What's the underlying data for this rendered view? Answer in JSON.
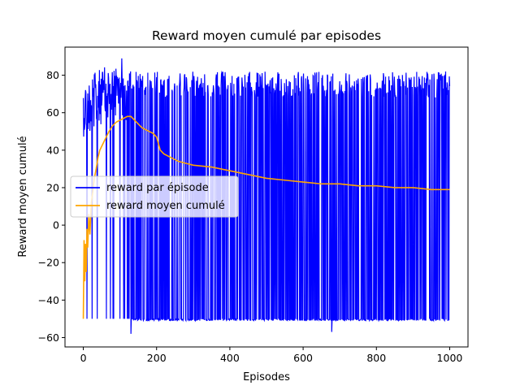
{
  "chart_data": {
    "type": "line",
    "title": "Reward moyen cumulé par episodes",
    "xlabel": "Episodes",
    "ylabel": "Reward moyen cumulé",
    "xlim": [
      -50,
      1050
    ],
    "ylim": [
      -65,
      95
    ],
    "xticks": [
      0,
      200,
      400,
      600,
      800,
      1000
    ],
    "yticks": [
      -60,
      -40,
      -20,
      0,
      20,
      40,
      60,
      80
    ],
    "legend_position": "center-left",
    "grid": false,
    "series": [
      {
        "name": "reward par épisode",
        "color": "#0000ff",
        "pattern": "oscillating",
        "episodes": 1000,
        "high_band": [
          [
            0,
            77
          ],
          [
            50,
            84
          ],
          [
            100,
            87
          ],
          [
            130,
            85
          ],
          [
            200,
            82
          ],
          [
            400,
            82
          ],
          [
            600,
            82
          ],
          [
            800,
            82
          ],
          [
            1000,
            82
          ]
        ],
        "low_value": -50,
        "min_value": -58,
        "max_value": 89
      },
      {
        "name": "reward moyen cumulé",
        "color": "#ffa500",
        "x": [
          0,
          2,
          4,
          6,
          8,
          10,
          12,
          15,
          18,
          22,
          26,
          30,
          35,
          40,
          45,
          50,
          60,
          70,
          80,
          90,
          100,
          110,
          120,
          130,
          140,
          150,
          160,
          170,
          180,
          190,
          200,
          210,
          220,
          240,
          260,
          280,
          300,
          350,
          400,
          450,
          500,
          550,
          600,
          650,
          700,
          750,
          800,
          850,
          900,
          950,
          1000
        ],
        "y": [
          -50,
          -8,
          -30,
          -10,
          -25,
          -2,
          -12,
          6,
          -5,
          12,
          18,
          25,
          30,
          36,
          40,
          42,
          46,
          50,
          53,
          55,
          56,
          57,
          58,
          58,
          56,
          54,
          52,
          51,
          50,
          49,
          47,
          40,
          38,
          36,
          34,
          33,
          32,
          31,
          29,
          27,
          25,
          24,
          23,
          22,
          22,
          21,
          21,
          20,
          20,
          19,
          19
        ]
      }
    ]
  }
}
